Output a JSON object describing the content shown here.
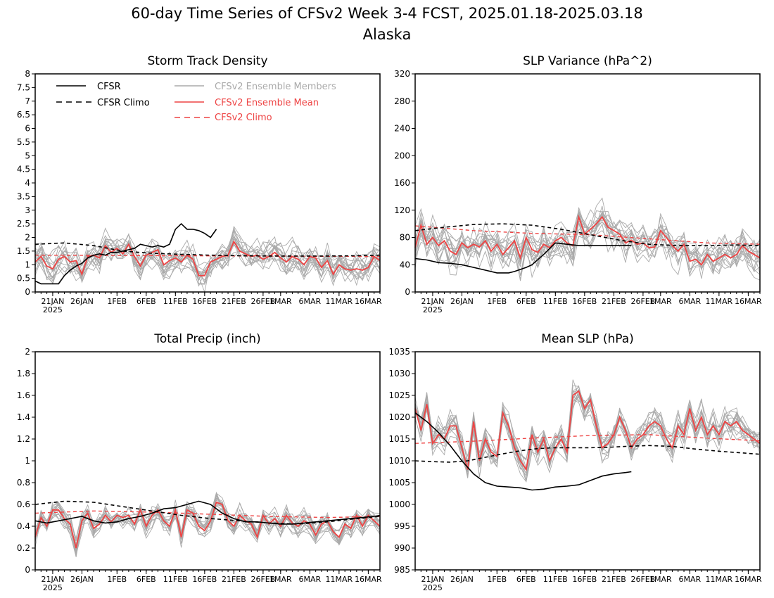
{
  "title": "60-day Time Series of CFSv2 Week 3-4 FCST, 2025.01.18-2025.03.18",
  "subtitle": "Alaska",
  "legend": {
    "cfsr": "CFSR",
    "cfsr_climo": "CFSR Climo",
    "members": "CFSv2 Ensemble Members",
    "ens_mean": "CFSv2 Ensemble Mean",
    "cfsv2_climo": "CFSv2 Climo"
  },
  "colors": {
    "cfsr": "#000000",
    "members": "#aaaaaa",
    "ens_mean": "#ee4444",
    "legend_members_text": "#aaaaaa",
    "legend_red_text": "#ee4444"
  },
  "x_ticks": [
    "21JAN",
    "26JAN",
    "1FEB",
    "6FEB",
    "11FEB",
    "16FEB",
    "21FEB",
    "26FEB",
    "1MAR",
    "6MAR",
    "11MAR",
    "16MAR"
  ],
  "x_tick_year": "2025",
  "chart_data": [
    {
      "type": "line",
      "title": "Storm Track Density",
      "ylim": [
        0,
        8
      ],
      "yticks": [
        "0",
        "0.5",
        "1",
        "1.5",
        "2",
        "2.5",
        "3",
        "3.5",
        "4",
        "4.5",
        "5",
        "5.5",
        "6",
        "6.5",
        "7",
        "7.5",
        "8"
      ],
      "x_days": [
        0,
        59
      ],
      "series": [
        {
          "name": "CFSR",
          "style": "solid-black",
          "x": [
            0,
            1,
            2,
            3,
            4,
            5,
            6,
            7,
            8,
            9,
            10,
            11,
            12,
            13,
            14,
            15,
            16,
            17,
            18,
            19,
            20,
            21,
            22,
            23,
            24,
            25,
            26,
            27,
            28,
            29,
            30,
            31
          ],
          "values": [
            0.4,
            0.3,
            0.3,
            0.3,
            0.3,
            0.6,
            0.8,
            0.95,
            1.05,
            1.25,
            1.35,
            1.4,
            1.35,
            1.45,
            1.45,
            1.5,
            1.55,
            1.6,
            1.75,
            1.7,
            1.65,
            1.7,
            1.65,
            1.75,
            2.3,
            2.5,
            2.3,
            2.3,
            2.25,
            2.15,
            2.0,
            2.3
          ]
        },
        {
          "name": "CFSR Climo",
          "style": "dashed-black",
          "x": [
            0,
            5,
            10,
            15,
            20,
            25,
            30,
            35,
            40,
            45,
            50,
            55,
            59
          ],
          "values": [
            1.75,
            1.8,
            1.7,
            1.5,
            1.42,
            1.38,
            1.35,
            1.33,
            1.32,
            1.32,
            1.32,
            1.33,
            1.35
          ]
        },
        {
          "name": "CFSv2 Ensemble Mean",
          "style": "solid-red",
          "x": [
            0,
            1,
            2,
            3,
            4,
            5,
            6,
            7,
            8,
            9,
            10,
            11,
            12,
            13,
            14,
            15,
            16,
            17,
            18,
            19,
            20,
            21,
            22,
            23,
            24,
            25,
            26,
            27,
            28,
            29,
            30,
            31,
            32,
            33,
            34,
            35,
            36,
            37,
            38,
            39,
            40,
            41,
            42,
            43,
            44,
            45,
            46,
            47,
            48,
            49,
            50,
            51,
            52,
            53,
            54,
            55,
            56,
            57,
            58,
            59
          ],
          "values": [
            1.1,
            1.3,
            0.95,
            0.85,
            1.2,
            1.3,
            1.1,
            1.15,
            0.65,
            1.3,
            1.35,
            1.25,
            1.7,
            1.45,
            1.6,
            1.4,
            1.75,
            1.3,
            0.95,
            1.35,
            1.45,
            1.55,
            1.0,
            1.15,
            1.25,
            1.1,
            1.35,
            1.2,
            0.6,
            0.6,
            1.1,
            1.2,
            1.3,
            1.35,
            1.85,
            1.5,
            1.4,
            1.3,
            1.35,
            1.2,
            1.3,
            1.45,
            1.25,
            1.1,
            1.3,
            1.2,
            1.0,
            1.3,
            1.25,
            0.9,
            1.15,
            0.65,
            1.0,
            0.85,
            0.8,
            0.85,
            0.8,
            0.9,
            1.3,
            1.15
          ]
        },
        {
          "name": "CFSv2 Climo",
          "style": "dashed-red",
          "x": [
            0,
            59
          ],
          "values": [
            1.35,
            1.3
          ]
        }
      ],
      "members": {
        "count": 16,
        "spread": 0.55,
        "clip": [
          0,
          8
        ]
      }
    },
    {
      "type": "line",
      "title": "SLP Variance (hPa^2)",
      "ylim": [
        0,
        320
      ],
      "yticks": [
        "0",
        "40",
        "80",
        "120",
        "160",
        "200",
        "240",
        "280",
        "320"
      ],
      "series": [
        {
          "name": "CFSR",
          "style": "solid-black",
          "x": [
            0,
            2,
            4,
            6,
            8,
            10,
            12,
            14,
            16,
            17,
            19,
            20,
            22,
            24,
            26,
            28,
            30,
            32,
            34,
            36,
            37
          ],
          "values": [
            49,
            47,
            43,
            42,
            40,
            36,
            32,
            28,
            28,
            30,
            36,
            40,
            55,
            72,
            70,
            68,
            68,
            68,
            68,
            68,
            68
          ]
        },
        {
          "name": "CFSR Climo",
          "style": "dashed-black",
          "x": [
            0,
            5,
            10,
            15,
            20,
            25,
            30,
            35,
            40,
            45,
            50,
            55,
            59
          ],
          "values": [
            90,
            95,
            99,
            100,
            98,
            92,
            84,
            76,
            70,
            68,
            68,
            69,
            68
          ]
        },
        {
          "name": "CFSv2 Ensemble Mean",
          "style": "solid-red",
          "x": [
            0,
            1,
            2,
            3,
            4,
            5,
            6,
            7,
            8,
            9,
            10,
            11,
            12,
            13,
            14,
            15,
            16,
            17,
            18,
            19,
            20,
            21,
            22,
            23,
            24,
            25,
            26,
            27,
            28,
            29,
            30,
            31,
            32,
            33,
            34,
            35,
            36,
            37,
            38,
            39,
            40,
            41,
            42,
            43,
            44,
            45,
            46,
            47,
            48,
            49,
            50,
            51,
            52,
            53,
            54,
            55,
            56,
            57,
            58,
            59
          ],
          "values": [
            65,
            98,
            70,
            80,
            68,
            75,
            60,
            55,
            72,
            65,
            70,
            66,
            75,
            60,
            70,
            55,
            65,
            75,
            50,
            80,
            62,
            58,
            70,
            65,
            75,
            80,
            72,
            68,
            110,
            85,
            92,
            100,
            110,
            95,
            90,
            85,
            72,
            76,
            70,
            72,
            65,
            66,
            90,
            80,
            68,
            60,
            70,
            45,
            48,
            40,
            55,
            45,
            50,
            55,
            50,
            55,
            68,
            60,
            55,
            50
          ]
        },
        {
          "name": "CFSv2 Climo",
          "style": "dashed-red",
          "x": [
            0,
            10,
            20,
            30,
            40,
            50,
            59
          ],
          "values": [
            97,
            90,
            86,
            84,
            78,
            72,
            70
          ]
        }
      ],
      "members": {
        "count": 16,
        "spread": 28,
        "clip": [
          0,
          320
        ]
      }
    },
    {
      "type": "line",
      "title": "Total Precip (inch)",
      "ylim": [
        0,
        2
      ],
      "yticks": [
        "0",
        "0.2",
        "0.4",
        "0.6",
        "0.8",
        "1",
        "1.2",
        "1.4",
        "1.6",
        "1.8",
        "2"
      ],
      "series": [
        {
          "name": "CFSR",
          "style": "solid-black",
          "x": [
            0,
            2,
            4,
            6,
            8,
            10,
            12,
            14,
            16,
            18,
            20,
            22,
            24,
            26,
            28,
            30,
            32,
            34,
            36,
            38,
            40,
            42,
            44,
            46,
            48,
            50,
            52,
            54,
            56,
            58,
            59
          ],
          "values": [
            0.45,
            0.43,
            0.45,
            0.47,
            0.49,
            0.45,
            0.43,
            0.44,
            0.47,
            0.49,
            0.52,
            0.56,
            0.57,
            0.6,
            0.63,
            0.6,
            0.52,
            0.47,
            0.44,
            0.44,
            0.43,
            0.42,
            0.42,
            0.43,
            0.44,
            0.45,
            0.46,
            0.47,
            0.48,
            0.49,
            0.5
          ]
        },
        {
          "name": "CFSR Climo",
          "style": "dashed-black",
          "x": [
            0,
            5,
            10,
            15,
            20,
            25,
            30,
            35,
            40,
            45,
            50,
            55,
            59
          ],
          "values": [
            0.6,
            0.63,
            0.62,
            0.58,
            0.54,
            0.5,
            0.47,
            0.45,
            0.43,
            0.42,
            0.44,
            0.47,
            0.49
          ]
        },
        {
          "name": "CFSv2 Ensemble Mean",
          "style": "solid-red",
          "x": [
            0,
            1,
            2,
            3,
            4,
            5,
            6,
            7,
            8,
            9,
            10,
            11,
            12,
            13,
            14,
            15,
            16,
            17,
            18,
            19,
            20,
            21,
            22,
            23,
            24,
            25,
            26,
            27,
            28,
            29,
            30,
            31,
            32,
            33,
            34,
            35,
            36,
            37,
            38,
            39,
            40,
            41,
            42,
            43,
            44,
            45,
            46,
            47,
            48,
            49,
            50,
            51,
            52,
            53,
            54,
            55,
            56,
            57,
            58,
            59
          ],
          "values": [
            0.3,
            0.48,
            0.4,
            0.55,
            0.55,
            0.47,
            0.42,
            0.2,
            0.45,
            0.52,
            0.38,
            0.42,
            0.5,
            0.44,
            0.5,
            0.48,
            0.5,
            0.42,
            0.55,
            0.4,
            0.5,
            0.55,
            0.45,
            0.4,
            0.55,
            0.3,
            0.55,
            0.52,
            0.4,
            0.36,
            0.45,
            0.62,
            0.6,
            0.45,
            0.4,
            0.5,
            0.45,
            0.42,
            0.3,
            0.5,
            0.42,
            0.47,
            0.4,
            0.5,
            0.43,
            0.4,
            0.45,
            0.42,
            0.32,
            0.42,
            0.45,
            0.35,
            0.3,
            0.42,
            0.38,
            0.5,
            0.4,
            0.5,
            0.45,
            0.4
          ]
        },
        {
          "name": "CFSv2 Climo",
          "style": "dashed-red",
          "x": [
            0,
            10,
            20,
            30,
            40,
            50,
            59
          ],
          "values": [
            0.52,
            0.54,
            0.53,
            0.51,
            0.49,
            0.48,
            0.49
          ]
        }
      ],
      "members": {
        "count": 16,
        "spread": 0.09,
        "clip": [
          0,
          2
        ]
      }
    },
    {
      "type": "line",
      "title": "Mean SLP (hPa)",
      "ylim": [
        985,
        1035
      ],
      "yticks": [
        "985",
        "990",
        "995",
        "1000",
        "1005",
        "1010",
        "1015",
        "1020",
        "1025",
        "1030",
        "1035"
      ],
      "series": [
        {
          "name": "CFSR",
          "style": "solid-black",
          "x": [
            0,
            2,
            4,
            6,
            8,
            10,
            12,
            14,
            16,
            18,
            20,
            22,
            24,
            26,
            28,
            30,
            32,
            34,
            36,
            37
          ],
          "values": [
            1021,
            1019,
            1016.5,
            1013.5,
            1010,
            1007,
            1005,
            1004.2,
            1004,
            1003.8,
            1003.3,
            1003.5,
            1004,
            1004.2,
            1004.5,
            1005.5,
            1006.5,
            1007,
            1007.3,
            1007.5
          ]
        },
        {
          "name": "CFSR Climo",
          "style": "dashed-black",
          "x": [
            0,
            3,
            6,
            9,
            12,
            15,
            18,
            21,
            24,
            27,
            30,
            33,
            36,
            40,
            44,
            48,
            52,
            56,
            59
          ],
          "values": [
            1010,
            1009.8,
            1009.7,
            1010,
            1010.8,
            1011.6,
            1012.3,
            1012.8,
            1013,
            1013,
            1013,
            1013.1,
            1013.3,
            1013.5,
            1013.3,
            1012.7,
            1012.2,
            1011.8,
            1011.5
          ]
        },
        {
          "name": "CFSv2 Ensemble Mean",
          "style": "solid-red",
          "x": [
            0,
            1,
            2,
            3,
            4,
            5,
            6,
            7,
            8,
            9,
            10,
            11,
            12,
            13,
            14,
            15,
            16,
            17,
            18,
            19,
            20,
            21,
            22,
            23,
            24,
            25,
            26,
            27,
            28,
            29,
            30,
            31,
            32,
            33,
            34,
            35,
            36,
            37,
            38,
            39,
            40,
            41,
            42,
            43,
            44,
            45,
            46,
            47,
            48,
            49,
            50,
            51,
            52,
            53,
            54,
            55,
            56,
            57,
            58,
            59
          ],
          "values": [
            1022,
            1017,
            1023,
            1014,
            1016,
            1015,
            1018,
            1018,
            1013,
            1008,
            1019,
            1010,
            1015,
            1012,
            1011,
            1021,
            1018,
            1013,
            1010,
            1008,
            1016,
            1012,
            1015,
            1010,
            1013,
            1015,
            1012,
            1025,
            1026,
            1022,
            1024,
            1018,
            1013,
            1014,
            1016,
            1020,
            1017,
            1013,
            1015,
            1016,
            1018,
            1019,
            1018,
            1015,
            1013,
            1018,
            1016,
            1022,
            1017,
            1020,
            1016,
            1018,
            1016,
            1019,
            1018,
            1019,
            1017,
            1016,
            1015,
            1014
          ]
        },
        {
          "name": "CFSv2 Climo",
          "style": "dashed-red",
          "x": [
            0,
            10,
            20,
            30,
            40,
            50,
            59
          ],
          "values": [
            1014,
            1014.5,
            1015.2,
            1015.8,
            1016,
            1015.2,
            1014.6
          ]
        }
      ],
      "members": {
        "count": 16,
        "spread": 3.2,
        "clip": [
          985,
          1035
        ]
      }
    }
  ]
}
